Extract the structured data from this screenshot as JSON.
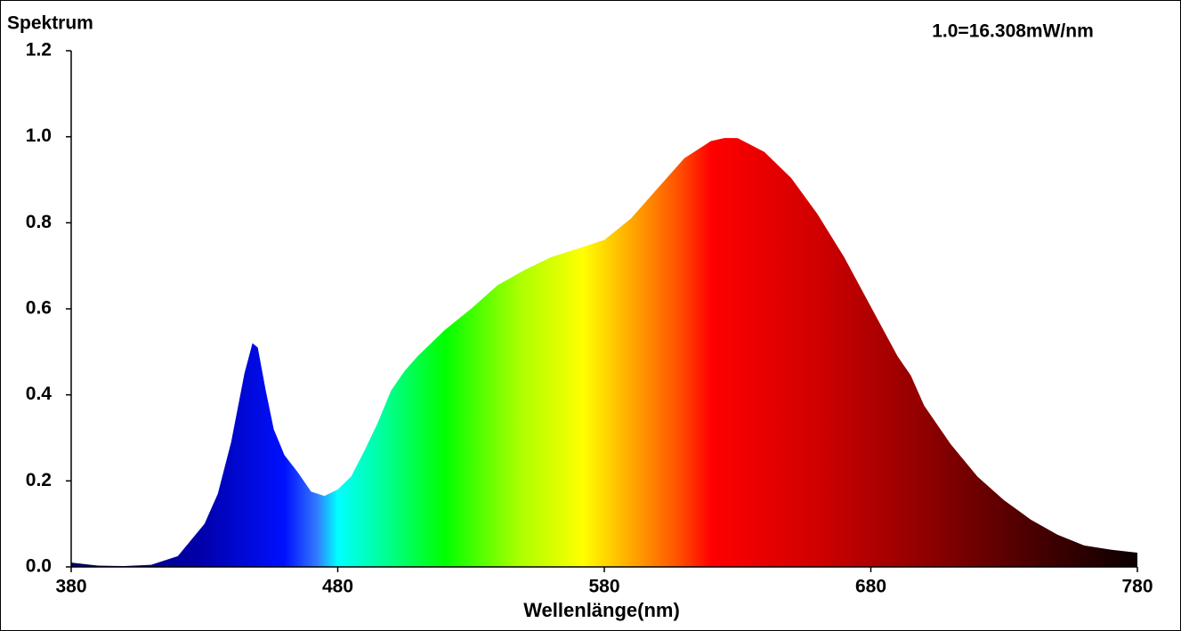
{
  "chart_data": {
    "type": "area",
    "title": "Spektrum",
    "annotation": "1.0=16.308mW/nm",
    "xlabel": "Wellenlänge(nm)",
    "x": [
      380,
      390,
      400,
      410,
      420,
      430,
      435,
      440,
      445,
      448,
      450,
      453,
      456,
      460,
      465,
      470,
      475,
      480,
      485,
      490,
      495,
      500,
      505,
      510,
      520,
      530,
      540,
      550,
      560,
      570,
      580,
      590,
      600,
      610,
      620,
      625,
      630,
      640,
      650,
      660,
      670,
      680,
      690,
      695,
      700,
      710,
      720,
      730,
      740,
      750,
      760,
      770,
      780
    ],
    "values": [
      0.01,
      0.003,
      0.002,
      0.005,
      0.025,
      0.1,
      0.17,
      0.29,
      0.45,
      0.52,
      0.51,
      0.41,
      0.32,
      0.26,
      0.22,
      0.175,
      0.165,
      0.18,
      0.21,
      0.27,
      0.335,
      0.41,
      0.455,
      0.49,
      0.55,
      0.6,
      0.655,
      0.69,
      0.72,
      0.74,
      0.76,
      0.81,
      0.88,
      0.95,
      0.99,
      0.997,
      0.997,
      0.965,
      0.905,
      0.82,
      0.72,
      0.605,
      0.49,
      0.445,
      0.375,
      0.285,
      0.21,
      0.155,
      0.11,
      0.075,
      0.05,
      0.04,
      0.033
    ],
    "xlim": [
      380,
      780
    ],
    "xticks": [
      380,
      480,
      580,
      680,
      780
    ],
    "ylim": [
      0,
      1.2
    ],
    "yticks": [
      {
        "value": 0,
        "label": "0.0"
      },
      0.2,
      0.4,
      0.6,
      0.8,
      {
        "value": 1,
        "label": "1.0"
      },
      1.2
    ],
    "grid": false
  }
}
